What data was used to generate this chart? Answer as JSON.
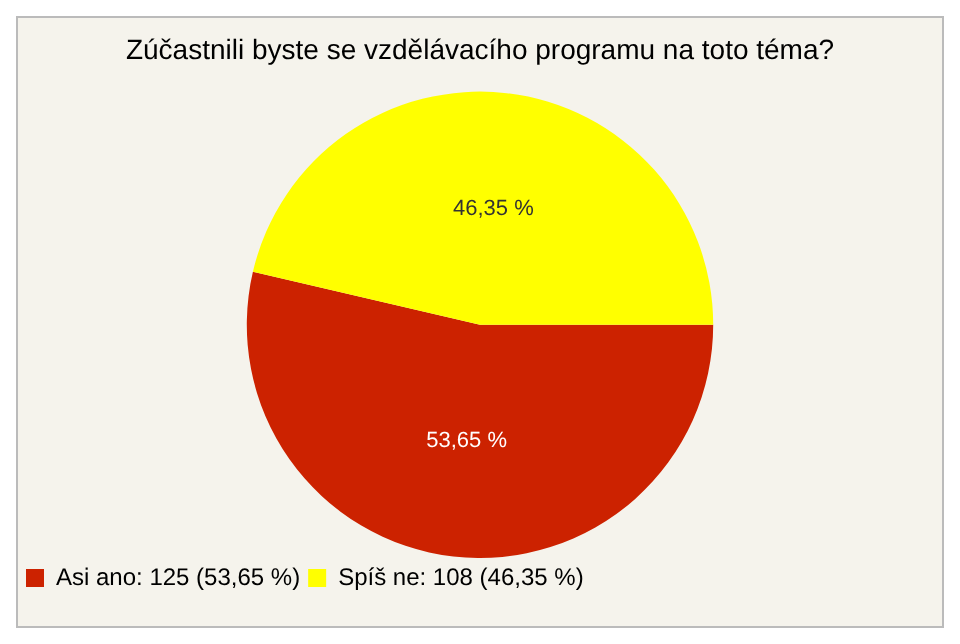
{
  "chart_data": {
    "type": "pie",
    "title": "Zúčastnili byste se vzdělávacího programu na toto téma?",
    "categories": [
      "Asi ano: 125 (53,65 %)",
      "Spíš ne: 108 (46,35 %)"
    ],
    "values": [
      53.65,
      46.35
    ],
    "colors": [
      "#cc2200",
      "#ffff00"
    ],
    "value_labels": [
      "53,65 %",
      "46,35 %"
    ],
    "legend": "bottom left"
  }
}
